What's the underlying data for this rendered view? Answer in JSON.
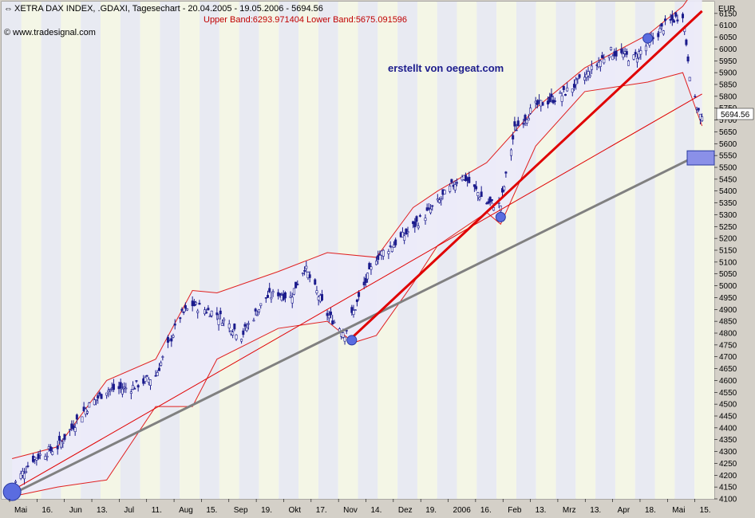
{
  "header": {
    "title": "XETRA DAX INDEX, .GDAXI, Tagesechart - 20.04.2005 - 19.05.2006 - 5694.56",
    "indicator": "Upper Band:6293.971404 Lower Band:5675.091596",
    "source": "www.tradesignal.com",
    "watermark": "erstellt von oegeat.com"
  },
  "colors": {
    "plot_bg": "#ffffff",
    "stripe_a": "#e8eaf2",
    "stripe_b": "#f4f6e6",
    "band_fill": "#ecebfa",
    "band_line": "#e02020",
    "trend_red": "#e00000",
    "trend_gray": "#808080",
    "candle": "#1a1a8c",
    "marker": "#5a6ce0",
    "header_red": "#c00000",
    "watermark": "#1c1c8c"
  },
  "chart_data": {
    "type": "candlestick",
    "title": "XETRA DAX INDEX, .GDAXI, Tagesechart - 20.04.2005 - 19.05.2006 - 5694.56",
    "ylabel": "EUR",
    "ylim": [
      4100,
      6200
    ],
    "y_ticks": [
      4100,
      4150,
      4200,
      4250,
      4300,
      4350,
      4400,
      4450,
      4500,
      4550,
      4600,
      4650,
      4700,
      4750,
      4800,
      4850,
      4900,
      4950,
      5000,
      5050,
      5100,
      5150,
      5200,
      5250,
      5300,
      5350,
      5400,
      5450,
      5500,
      5550,
      5600,
      5650,
      5700,
      5750,
      5800,
      5850,
      5900,
      5950,
      6000,
      6050,
      6100,
      6150
    ],
    "x_labels": [
      "Mai",
      "16.",
      "Jun",
      "13.",
      "Jul",
      "11.",
      "Aug",
      "15.",
      "Sep",
      "19.",
      "Okt",
      "17.",
      "Nov",
      "14.",
      "Dez",
      "19.",
      "2006",
      "16.",
      "Feb",
      "13.",
      "Mrz",
      "13.",
      "Apr",
      "18.",
      "Mai",
      "15."
    ],
    "last_value": "5694.56",
    "series": [
      {
        "name": "Close",
        "values": [
          {
            "x": "2005-04-20",
            "y": 4150
          },
          {
            "x": "2005-05-02",
            "y": 4270
          },
          {
            "x": "2005-05-16",
            "y": 4320
          },
          {
            "x": "2005-06-01",
            "y": 4480
          },
          {
            "x": "2005-06-13",
            "y": 4560
          },
          {
            "x": "2005-06-27",
            "y": 4570
          },
          {
            "x": "2005-07-11",
            "y": 4620
          },
          {
            "x": "2005-07-25",
            "y": 4870
          },
          {
            "x": "2005-08-01",
            "y": 4920
          },
          {
            "x": "2005-08-15",
            "y": 4880
          },
          {
            "x": "2005-08-29",
            "y": 4790
          },
          {
            "x": "2005-09-12",
            "y": 4950
          },
          {
            "x": "2005-09-19",
            "y": 4970
          },
          {
            "x": "2005-09-26",
            "y": 4950
          },
          {
            "x": "2005-10-04",
            "y": 5080
          },
          {
            "x": "2005-10-17",
            "y": 4880
          },
          {
            "x": "2005-10-27",
            "y": 4800
          },
          {
            "x": "2005-11-07",
            "y": 5000
          },
          {
            "x": "2005-11-14",
            "y": 5120
          },
          {
            "x": "2005-11-28",
            "y": 5200
          },
          {
            "x": "2005-12-05",
            "y": 5250
          },
          {
            "x": "2005-12-19",
            "y": 5350
          },
          {
            "x": "2006-01-02",
            "y": 5470
          },
          {
            "x": "2006-01-16",
            "y": 5350
          },
          {
            "x": "2006-01-24",
            "y": 5340
          },
          {
            "x": "2006-02-01",
            "y": 5660
          },
          {
            "x": "2006-02-13",
            "y": 5760
          },
          {
            "x": "2006-02-27",
            "y": 5800
          },
          {
            "x": "2006-03-13",
            "y": 5880
          },
          {
            "x": "2006-03-27",
            "y": 5990
          },
          {
            "x": "2006-04-10",
            "y": 5960
          },
          {
            "x": "2006-04-18",
            "y": 6020
          },
          {
            "x": "2006-04-28",
            "y": 6100
          },
          {
            "x": "2006-05-08",
            "y": 6150
          },
          {
            "x": "2006-05-12",
            "y": 5900
          },
          {
            "x": "2006-05-15",
            "y": 5780
          },
          {
            "x": "2006-05-19",
            "y": 5694.56
          }
        ]
      }
    ],
    "bollinger": {
      "upper": [
        {
          "x": "2005-04-20",
          "y": 4270
        },
        {
          "x": "2005-05-16",
          "y": 4320
        },
        {
          "x": "2005-06-13",
          "y": 4600
        },
        {
          "x": "2005-07-11",
          "y": 4690
        },
        {
          "x": "2005-08-01",
          "y": 4980
        },
        {
          "x": "2005-08-15",
          "y": 4970
        },
        {
          "x": "2005-09-19",
          "y": 5060
        },
        {
          "x": "2005-10-17",
          "y": 5140
        },
        {
          "x": "2005-11-14",
          "y": 5120
        },
        {
          "x": "2005-12-05",
          "y": 5330
        },
        {
          "x": "2005-12-19",
          "y": 5400
        },
        {
          "x": "2006-01-16",
          "y": 5520
        },
        {
          "x": "2006-02-13",
          "y": 5750
        },
        {
          "x": "2006-03-13",
          "y": 5920
        },
        {
          "x": "2006-04-18",
          "y": 6060
        },
        {
          "x": "2006-05-08",
          "y": 6180
        },
        {
          "x": "2006-05-19",
          "y": 6294
        }
      ],
      "lower": [
        {
          "x": "2005-04-20",
          "y": 4110
        },
        {
          "x": "2005-05-16",
          "y": 4150
        },
        {
          "x": "2005-06-13",
          "y": 4180
        },
        {
          "x": "2005-07-11",
          "y": 4490
        },
        {
          "x": "2005-08-01",
          "y": 4490
        },
        {
          "x": "2005-08-15",
          "y": 4690
        },
        {
          "x": "2005-09-19",
          "y": 4820
        },
        {
          "x": "2005-10-17",
          "y": 4850
        },
        {
          "x": "2005-11-01",
          "y": 4760
        },
        {
          "x": "2005-11-14",
          "y": 4790
        },
        {
          "x": "2005-12-05",
          "y": 5010
        },
        {
          "x": "2005-12-19",
          "y": 5170
        },
        {
          "x": "2006-01-16",
          "y": 5310
        },
        {
          "x": "2006-01-24",
          "y": 5260
        },
        {
          "x": "2006-02-13",
          "y": 5590
        },
        {
          "x": "2006-03-13",
          "y": 5820
        },
        {
          "x": "2006-04-18",
          "y": 5860
        },
        {
          "x": "2006-05-08",
          "y": 5900
        },
        {
          "x": "2006-05-19",
          "y": 5675
        }
      ]
    },
    "trendlines": [
      {
        "name": "gray support",
        "color": "#808080",
        "from": {
          "x": "2005-04-20",
          "y": 4120
        },
        "to": {
          "x": "2006-05-19",
          "y": 5560
        }
      },
      {
        "name": "thin red",
        "color": "#e00000",
        "from": {
          "x": "2005-04-20",
          "y": 4135
        },
        "to": {
          "x": "2006-05-19",
          "y": 5810
        }
      },
      {
        "name": "bold red",
        "color": "#e00000",
        "from": {
          "x": "2005-10-31",
          "y": 4780
        },
        "to": {
          "x": "2006-05-19",
          "y": 6160
        }
      }
    ],
    "markers": [
      {
        "x": "2005-04-20",
        "y": 4130
      },
      {
        "x": "2005-10-31",
        "y": 4770
      },
      {
        "x": "2006-01-24",
        "y": 5290
      },
      {
        "x": "2006-04-18",
        "y": 6045
      }
    ],
    "highlight_box": {
      "y_from": 5510,
      "y_to": 5570
    }
  }
}
